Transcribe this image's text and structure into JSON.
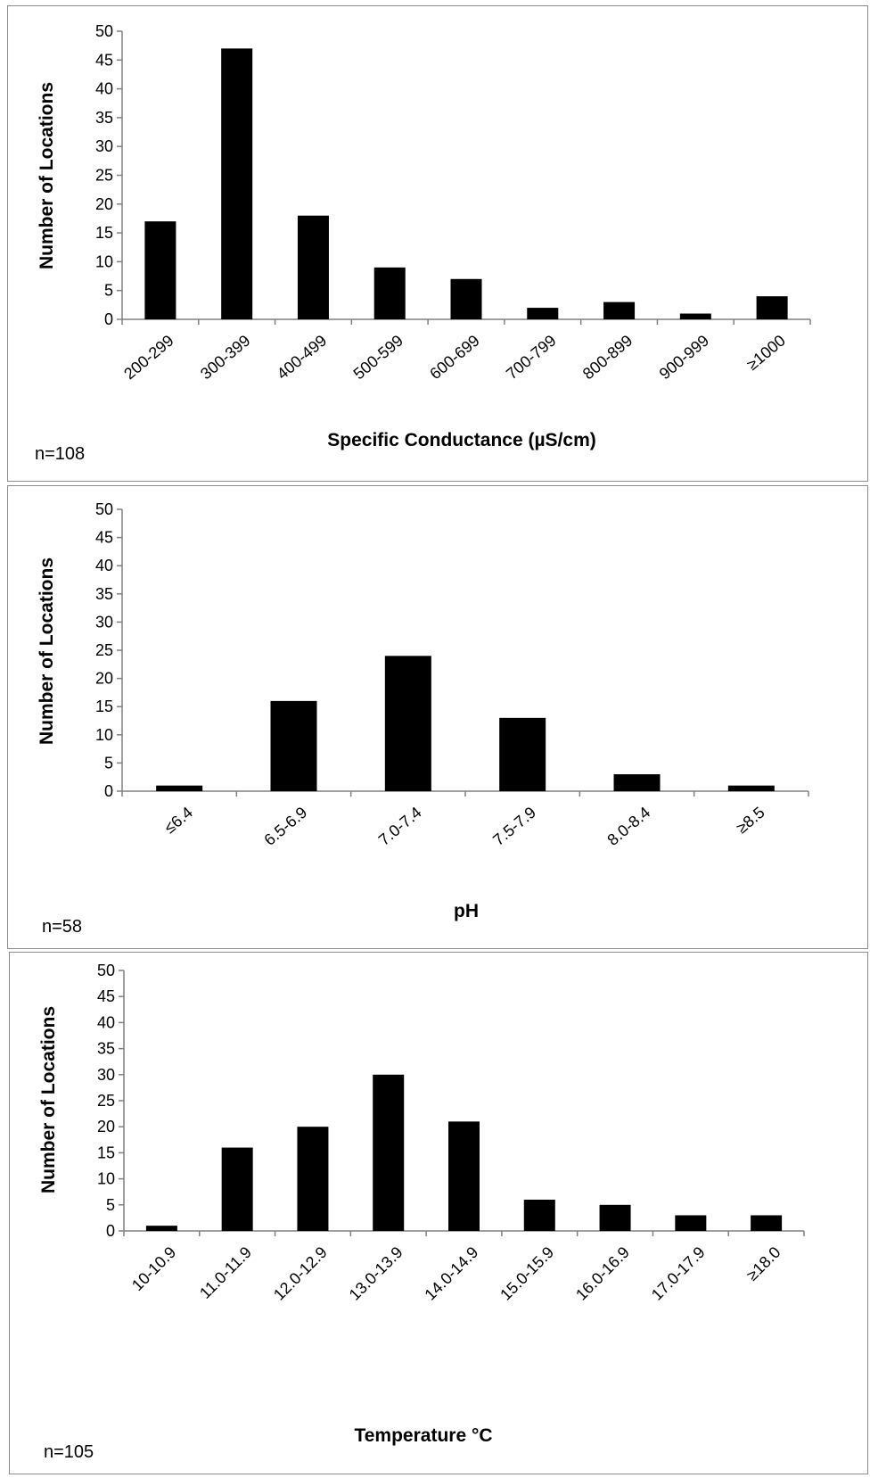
{
  "chart_data": [
    {
      "type": "bar",
      "categories": [
        "200-299",
        "300-399",
        "400-499",
        "500-599",
        "600-699",
        "700-799",
        "800-899",
        "900-999",
        "≥1000"
      ],
      "values": [
        17,
        47,
        18,
        9,
        7,
        2,
        3,
        1,
        4
      ],
      "xlabel": "Specific Conductance (µS/cm)",
      "ylabel": "Number of Locations",
      "annotation": "n=108",
      "ylim": [
        0,
        50
      ],
      "yticks": [
        0,
        5,
        10,
        15,
        20,
        25,
        30,
        35,
        40,
        45,
        50
      ],
      "grid": false,
      "bar_color": "#000000"
    },
    {
      "type": "bar",
      "categories": [
        "≤6.4",
        "6.5-6.9",
        "7.0-7.4",
        "7.5-7.9",
        "8.0-8.4",
        "≥8.5"
      ],
      "values": [
        1,
        16,
        24,
        13,
        3,
        1
      ],
      "xlabel": "pH",
      "ylabel": "Number of Locations",
      "annotation": "n=58",
      "ylim": [
        0,
        50
      ],
      "yticks": [
        0,
        5,
        10,
        15,
        20,
        25,
        30,
        35,
        40,
        45,
        50
      ],
      "grid": false,
      "bar_color": "#000000"
    },
    {
      "type": "bar",
      "categories": [
        "10-10.9",
        "11.0-11.9",
        "12.0-12.9",
        "13.0-13.9",
        "14.0-14.9",
        "15.0-15.9",
        "16.0-16.9",
        "17.0-17.9",
        "≥18.0"
      ],
      "values": [
        1,
        16,
        20,
        30,
        21,
        6,
        5,
        3,
        3
      ],
      "xlabel": "Temperature °C",
      "ylabel": "Number of Locations",
      "annotation": "n=105",
      "ylim": [
        0,
        50
      ],
      "yticks": [
        0,
        5,
        10,
        15,
        20,
        25,
        30,
        35,
        40,
        45,
        50
      ],
      "grid": false,
      "bar_color": "#000000"
    }
  ]
}
